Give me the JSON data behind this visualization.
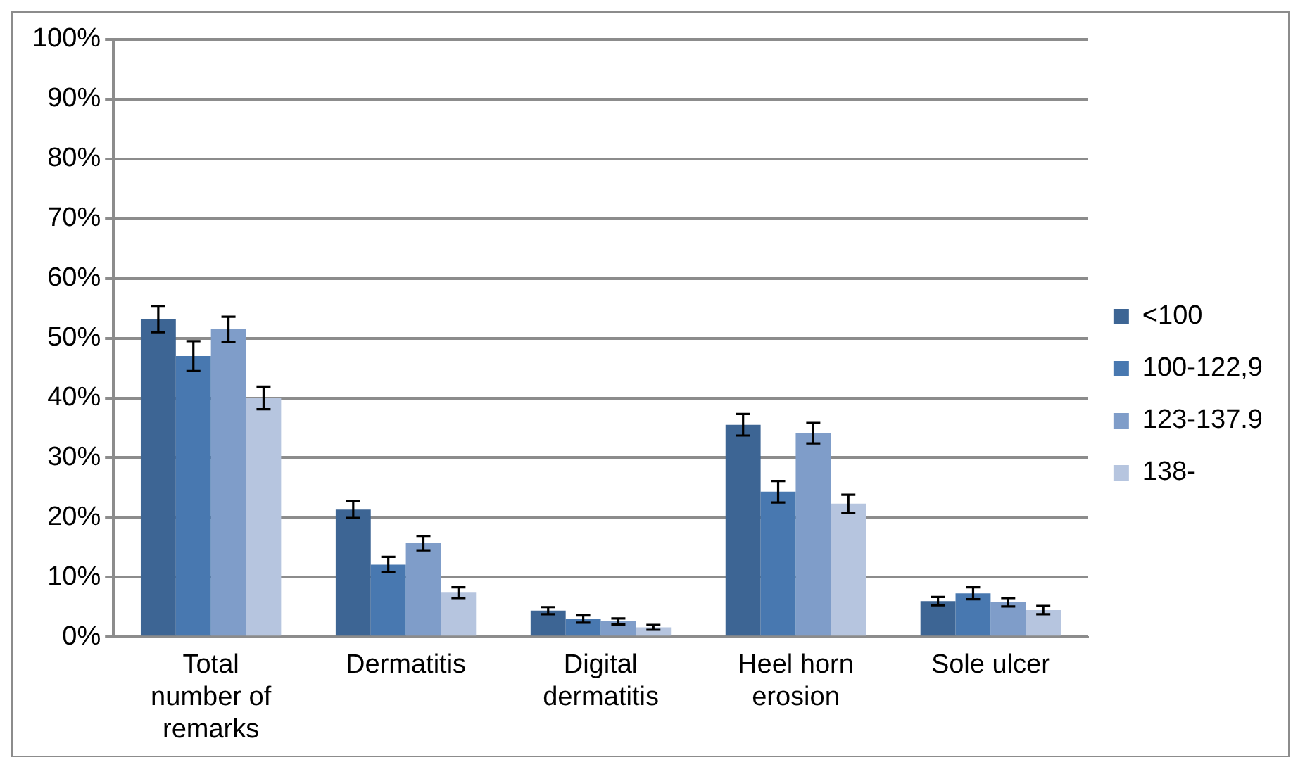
{
  "chart_data": {
    "type": "bar",
    "categories": [
      "Total number of remarks",
      "Dermatitis",
      "Digital dermatitis",
      "Heel horn erosion",
      "Sole ulcer"
    ],
    "series": [
      {
        "name": "<100",
        "color": "#3d6594",
        "values": [
          53.2,
          21.3,
          4.4,
          35.5,
          6.0
        ],
        "errors": [
          2.2,
          1.4,
          0.6,
          1.8,
          0.7
        ]
      },
      {
        "name": "100-122,9",
        "color": "#4878b0",
        "values": [
          47.0,
          12.1,
          3.0,
          24.3,
          7.3
        ],
        "errors": [
          2.5,
          1.3,
          0.6,
          1.8,
          1.0
        ]
      },
      {
        "name": "123-137.9",
        "color": "#7f9dc9",
        "values": [
          51.5,
          15.7,
          2.6,
          34.1,
          5.8
        ],
        "errors": [
          2.1,
          1.2,
          0.5,
          1.7,
          0.7
        ]
      },
      {
        "name": "138-",
        "color": "#b6c5df",
        "values": [
          40.0,
          7.4,
          1.6,
          22.3,
          4.5
        ],
        "errors": [
          1.9,
          0.9,
          0.4,
          1.5,
          0.7
        ]
      }
    ],
    "ylim": [
      0,
      100
    ],
    "yticks": [
      {
        "value": 0,
        "label": "0%"
      },
      {
        "value": 10,
        "label": "10%"
      },
      {
        "value": 20,
        "label": "20%"
      },
      {
        "value": 30,
        "label": "30%"
      },
      {
        "value": 40,
        "label": "40%"
      },
      {
        "value": 50,
        "label": "50%"
      },
      {
        "value": 60,
        "label": "60%"
      },
      {
        "value": 70,
        "label": "70%"
      },
      {
        "value": 80,
        "label": "80%"
      },
      {
        "value": 90,
        "label": "90%"
      },
      {
        "value": 100,
        "label": "100%"
      }
    ],
    "grid": "y",
    "legend": "right"
  }
}
